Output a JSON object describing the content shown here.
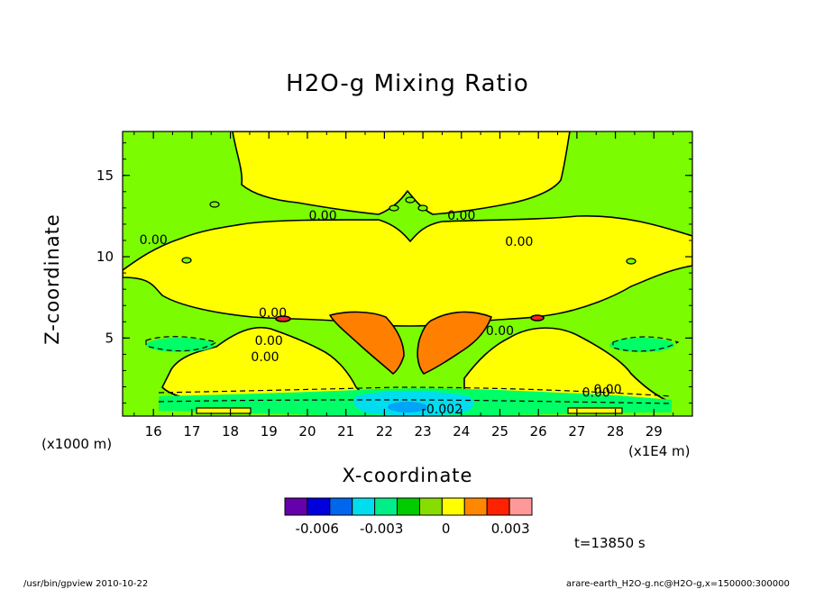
{
  "chart_data": {
    "type": "heatmap",
    "title": "H2O-g Mixing Ratio",
    "xlabel": "X-coordinate",
    "ylabel": "Z-coordinate",
    "x_unit": "(x1E4 m)",
    "y_unit": "(x1000 m)",
    "xlim": [
      15.2,
      30.0
    ],
    "ylim": [
      0.2,
      17.7
    ],
    "x_ticks": [
      "16",
      "17",
      "18",
      "19",
      "20",
      "21",
      "22",
      "23",
      "24",
      "25",
      "26",
      "27",
      "28",
      "29"
    ],
    "y_ticks": [
      "5",
      "10",
      "15"
    ],
    "contour_labels": [
      {
        "text": "0.00",
        "x": 16.0,
        "y": 11.0
      },
      {
        "text": "0.00",
        "x": 20.4,
        "y": 12.5
      },
      {
        "text": "0.00",
        "x": 24.0,
        "y": 12.5
      },
      {
        "text": "0.00",
        "x": 25.5,
        "y": 10.9
      },
      {
        "text": "0.00",
        "x": 19.1,
        "y": 6.5
      },
      {
        "text": "0.00",
        "x": 19.0,
        "y": 4.8
      },
      {
        "text": "0.00",
        "x": 18.9,
        "y": 3.8
      },
      {
        "text": "0.00",
        "x": 25.0,
        "y": 5.4
      },
      {
        "text": "0.00",
        "x": 27.5,
        "y": 1.6
      },
      {
        "text": "0.00",
        "x": 27.8,
        "y": 1.8
      },
      {
        "text": "-0.002",
        "x": 23.5,
        "y": 0.6
      }
    ],
    "colorbar": {
      "colors": [
        "#6600aa",
        "#0000dd",
        "#0066ee",
        "#00ddee",
        "#00ee88",
        "#00cc00",
        "#88dd00",
        "#ffff00",
        "#ff8800",
        "#ff2200",
        "#ff9999"
      ],
      "tick_labels": [
        "-0.006",
        "-0.003",
        "0",
        "0.003"
      ],
      "tick_values": [
        -0.006,
        -0.003,
        0,
        0.003
      ],
      "range": [
        -0.0075,
        0.004
      ]
    },
    "fill_colors": {
      "background": "#7cfc00",
      "positive": "#ffff00",
      "high": "#ff8000",
      "negative_light": "#00ff66",
      "negative": "#00ddee",
      "negative_strong": "#0077ff",
      "peak": "#ff2222"
    }
  },
  "annotation": {
    "time": "t=13850 s"
  },
  "footer": {
    "left": "/usr/bin/gpview   2010-10-22",
    "right": "arare-earth_H2O-g.nc@H2O-g,x=150000:300000"
  }
}
